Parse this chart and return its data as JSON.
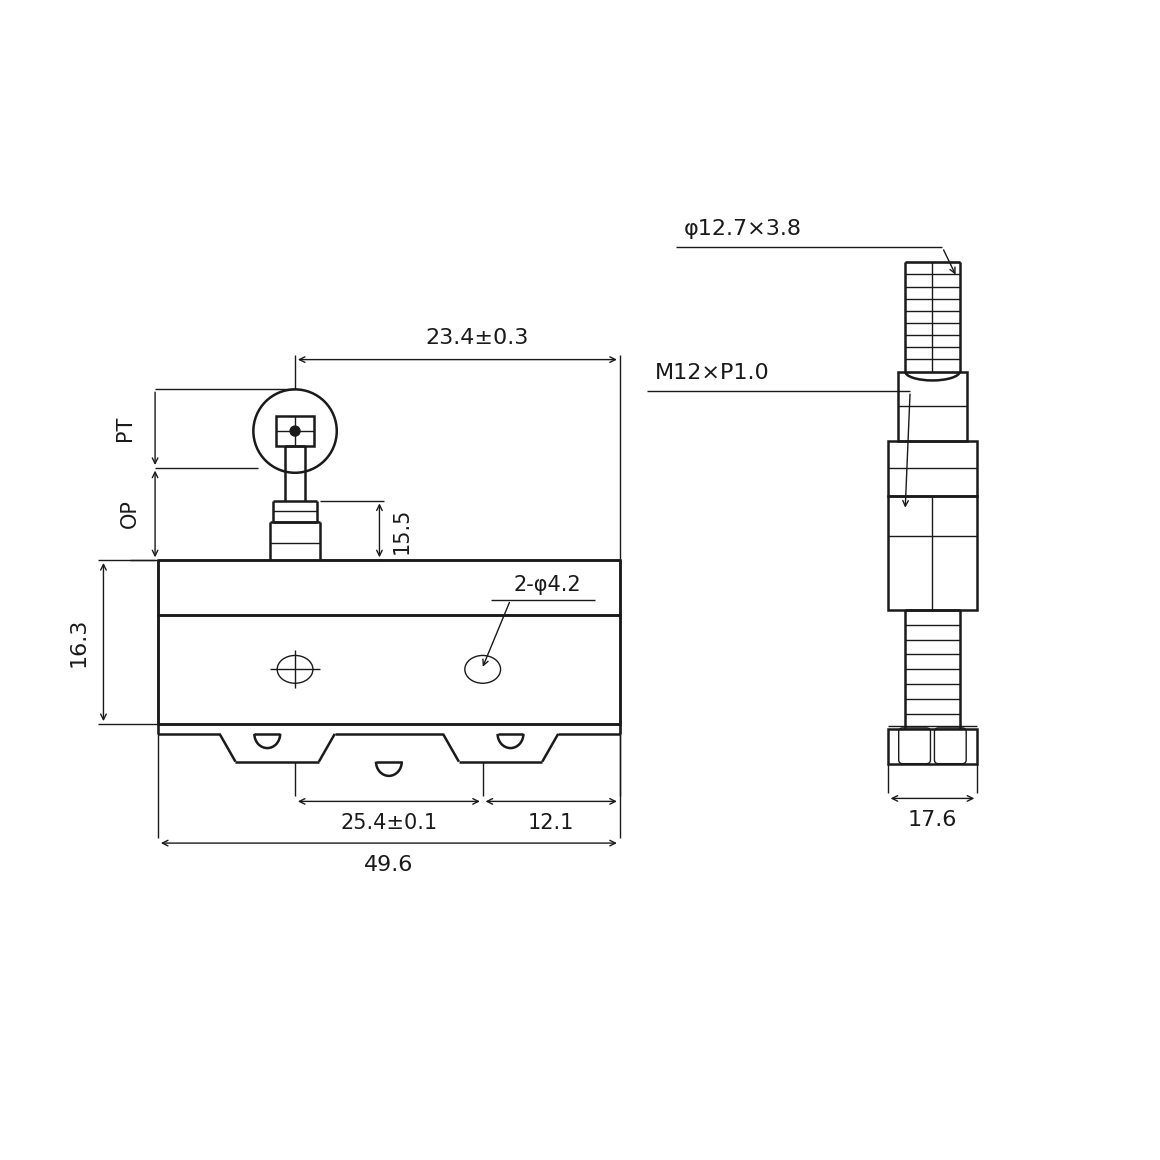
{
  "bg_color": "#ffffff",
  "line_color": "#1a1a1a",
  "lw": 1.8,
  "tlw": 1.0,
  "dlw": 1.0,
  "fs": 15,
  "annotations": {
    "dim_23_4": "23.4±0.3",
    "dim_15_5": "15.5",
    "dim_16_3": "16.3",
    "dim_25_4": "25.4±0.1",
    "dim_12_1": "12.1",
    "dim_49_6": "49.6",
    "dim_phi_12_7": "φ12.7×3.8",
    "dim_M12": "M12×P1.0",
    "dim_2phi4_2": "2-φ4.2",
    "dim_17_6": "17.6",
    "label_PT": "PT",
    "label_OP": "OP"
  }
}
